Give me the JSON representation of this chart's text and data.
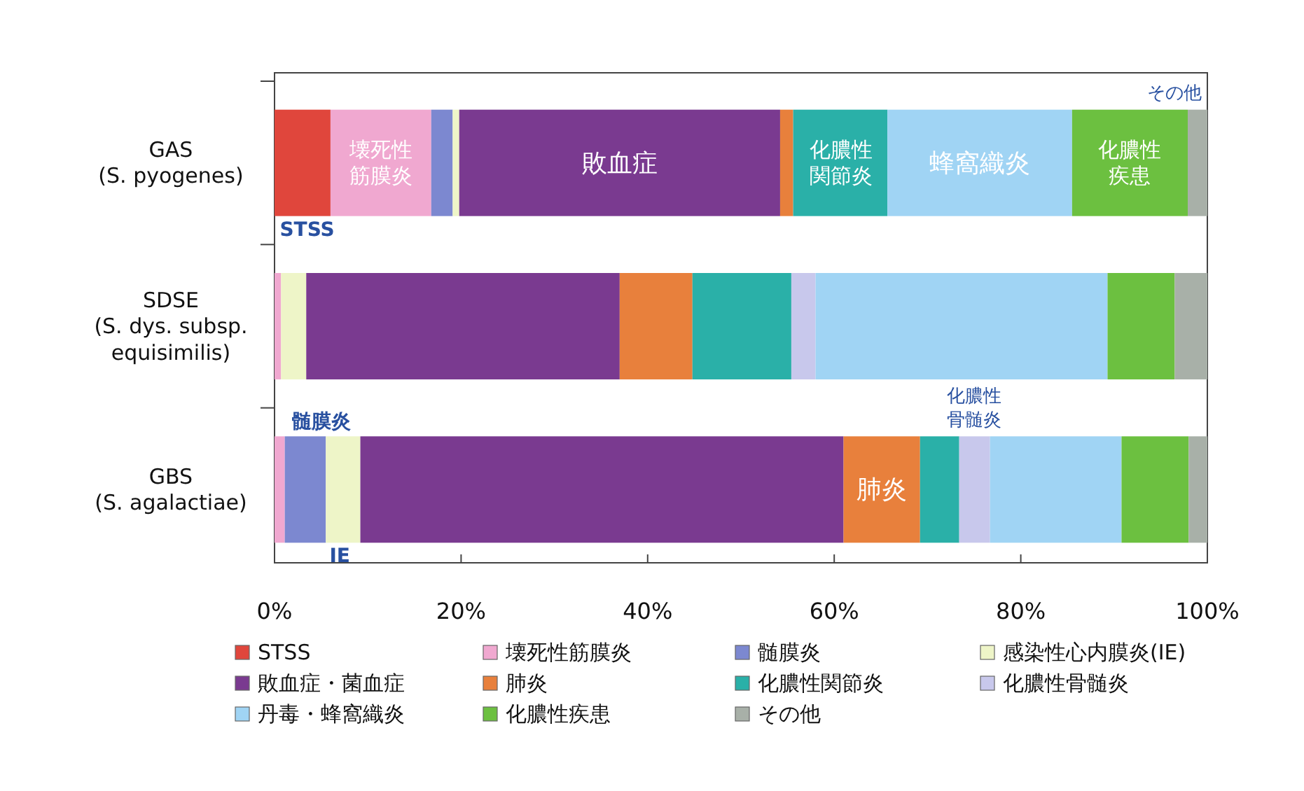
{
  "chart_data": {
    "type": "bar",
    "orientation": "horizontal",
    "stacked": true,
    "categories": [
      "GAS\n(S. pyogenes)",
      "SDSE\n(S. dys. subsp.\nequisimilis)",
      "GBS\n(S. agalactiae)"
    ],
    "series": [
      {
        "name": "STSS",
        "color": "#e0463c",
        "values": [
          6.0,
          0,
          0
        ]
      },
      {
        "name": "壊死性筋膜炎",
        "color": "#f0a8d0",
        "values": [
          10.8,
          0.7,
          1.1
        ]
      },
      {
        "name": "髄膜炎",
        "color": "#7c88d0",
        "values": [
          2.3,
          0,
          4.4
        ]
      },
      {
        "name": "感染性心内膜炎(IE)",
        "color": "#eef5c8",
        "values": [
          0.7,
          2.7,
          3.7
        ]
      },
      {
        "name": "敗血症・菌血症",
        "color": "#7a3a90",
        "values": [
          34.4,
          33.6,
          51.8
        ]
      },
      {
        "name": "肺炎",
        "color": "#e8803c",
        "values": [
          1.4,
          7.8,
          8.2
        ]
      },
      {
        "name": "化膿性関節炎",
        "color": "#2ab0a8",
        "values": [
          10.1,
          10.6,
          4.2
        ]
      },
      {
        "name": "化膿性骨髄炎",
        "color": "#c8c8ec",
        "values": [
          0,
          2.6,
          3.3
        ]
      },
      {
        "name": "丹毒・蜂窩織炎",
        "color": "#a0d4f4",
        "values": [
          19.8,
          31.3,
          14.1
        ]
      },
      {
        "name": "化膿性疾患",
        "color": "#6cc040",
        "values": [
          12.4,
          7.2,
          7.2
        ]
      },
      {
        "name": "その他",
        "color": "#a8b0a8",
        "values": [
          2.1,
          3.5,
          2.0
        ]
      }
    ],
    "xlim": [
      0,
      100
    ],
    "xticks": [
      {
        "value": 0,
        "label": "0%"
      },
      {
        "value": 20,
        "label": "20%"
      },
      {
        "value": 40,
        "label": "40%"
      },
      {
        "value": 60,
        "label": "60%"
      },
      {
        "value": 80,
        "label": "80%"
      },
      {
        "value": 100,
        "label": "100%"
      }
    ],
    "annotations": [
      "壊死性筋膜炎",
      "敗血症",
      "化膿性関節炎",
      "蜂窩織炎",
      "化膿性疾患",
      "肺炎",
      "STSS",
      "その他",
      "髄膜炎",
      "化膿性骨髄炎",
      "IE"
    ],
    "legend": "bottom",
    "grid": false
  }
}
